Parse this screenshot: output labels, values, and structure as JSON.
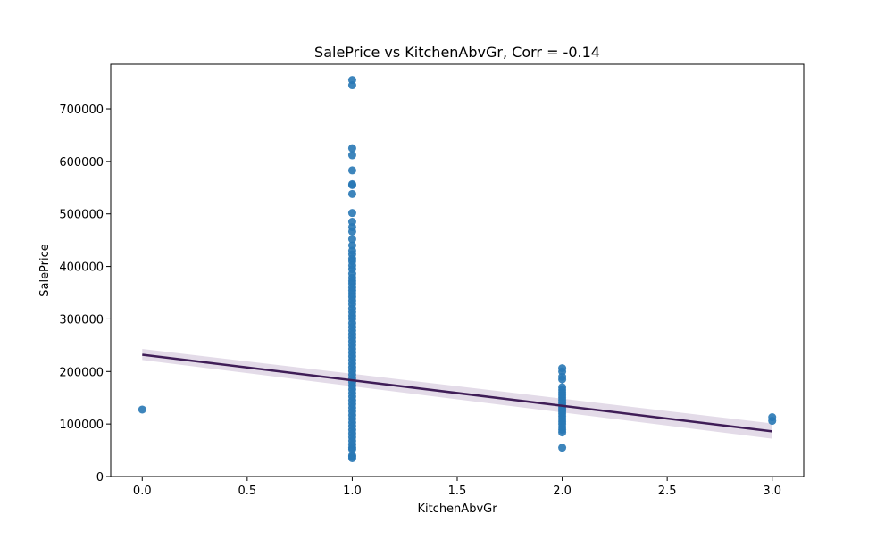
{
  "chart_data": {
    "type": "scatter",
    "title": "SalePrice vs KitchenAbvGr, Corr = -0.14",
    "xlabel": "KitchenAbvGr",
    "ylabel": "SalePrice",
    "xlim": [
      -0.15,
      3.15
    ],
    "ylim": [
      0,
      785000
    ],
    "x_ticks": [
      0.0,
      0.5,
      1.0,
      1.5,
      2.0,
      2.5,
      3.0
    ],
    "x_tick_labels": [
      "0.0",
      "0.5",
      "1.0",
      "1.5",
      "2.0",
      "2.5",
      "3.0"
    ],
    "y_ticks": [
      0,
      100000,
      200000,
      300000,
      400000,
      500000,
      600000,
      700000
    ],
    "y_tick_labels": [
      "0",
      "100000",
      "200000",
      "300000",
      "400000",
      "500000",
      "600000",
      "700000"
    ],
    "grid": false,
    "legend": "none",
    "point_color": "#2878b5",
    "regression_color": "#3f1d57",
    "ci_color": "#d9cfe0",
    "points": [
      {
        "x": 0,
        "y": 127500
      },
      {
        "x": 1,
        "y": 755000
      },
      {
        "x": 1,
        "y": 745000
      },
      {
        "x": 1,
        "y": 625000
      },
      {
        "x": 1,
        "y": 611657
      },
      {
        "x": 1,
        "y": 582933
      },
      {
        "x": 1,
        "y": 556581
      },
      {
        "x": 1,
        "y": 555000
      },
      {
        "x": 1,
        "y": 538000
      },
      {
        "x": 1,
        "y": 501837
      },
      {
        "x": 1,
        "y": 485000
      },
      {
        "x": 1,
        "y": 475000
      },
      {
        "x": 1,
        "y": 466500
      },
      {
        "x": 1,
        "y": 451950
      },
      {
        "x": 1,
        "y": 440000
      },
      {
        "x": 1,
        "y": 430000
      },
      {
        "x": 1,
        "y": 423000
      },
      {
        "x": 1,
        "y": 415000
      },
      {
        "x": 1,
        "y": 410000
      },
      {
        "x": 1,
        "y": 402000
      },
      {
        "x": 1,
        "y": 395000
      },
      {
        "x": 1,
        "y": 386250
      },
      {
        "x": 1,
        "y": 378500
      },
      {
        "x": 1,
        "y": 372500
      },
      {
        "x": 1,
        "y": 367294
      },
      {
        "x": 1,
        "y": 360000
      },
      {
        "x": 1,
        "y": 354000
      },
      {
        "x": 1,
        "y": 348000
      },
      {
        "x": 1,
        "y": 342000
      },
      {
        "x": 1,
        "y": 335000
      },
      {
        "x": 1,
        "y": 328000
      },
      {
        "x": 1,
        "y": 320000
      },
      {
        "x": 1,
        "y": 313000
      },
      {
        "x": 1,
        "y": 306000
      },
      {
        "x": 1,
        "y": 299800
      },
      {
        "x": 1,
        "y": 292000
      },
      {
        "x": 1,
        "y": 285000
      },
      {
        "x": 1,
        "y": 278000
      },
      {
        "x": 1,
        "y": 271000
      },
      {
        "x": 1,
        "y": 264000
      },
      {
        "x": 1,
        "y": 257000
      },
      {
        "x": 1,
        "y": 250000
      },
      {
        "x": 1,
        "y": 243000
      },
      {
        "x": 1,
        "y": 236000
      },
      {
        "x": 1,
        "y": 229000
      },
      {
        "x": 1,
        "y": 222000
      },
      {
        "x": 1,
        "y": 215000
      },
      {
        "x": 1,
        "y": 208000
      },
      {
        "x": 1,
        "y": 201000
      },
      {
        "x": 1,
        "y": 194000
      },
      {
        "x": 1,
        "y": 187000
      },
      {
        "x": 1,
        "y": 180000
      },
      {
        "x": 1,
        "y": 173000
      },
      {
        "x": 1,
        "y": 166000
      },
      {
        "x": 1,
        "y": 159000
      },
      {
        "x": 1,
        "y": 152000
      },
      {
        "x": 1,
        "y": 145000
      },
      {
        "x": 1,
        "y": 138000
      },
      {
        "x": 1,
        "y": 131000
      },
      {
        "x": 1,
        "y": 124000
      },
      {
        "x": 1,
        "y": 117000
      },
      {
        "x": 1,
        "y": 110000
      },
      {
        "x": 1,
        "y": 103000
      },
      {
        "x": 1,
        "y": 96000
      },
      {
        "x": 1,
        "y": 89000
      },
      {
        "x": 1,
        "y": 82000
      },
      {
        "x": 1,
        "y": 75000
      },
      {
        "x": 1,
        "y": 68000
      },
      {
        "x": 1,
        "y": 61000
      },
      {
        "x": 1,
        "y": 55000
      },
      {
        "x": 1,
        "y": 52000
      },
      {
        "x": 1,
        "y": 40000
      },
      {
        "x": 1,
        "y": 37900
      },
      {
        "x": 1,
        "y": 34900
      },
      {
        "x": 2,
        "y": 206300
      },
      {
        "x": 2,
        "y": 200000
      },
      {
        "x": 2,
        "y": 190000
      },
      {
        "x": 2,
        "y": 185000
      },
      {
        "x": 2,
        "y": 170000
      },
      {
        "x": 2,
        "y": 165000
      },
      {
        "x": 2,
        "y": 160000
      },
      {
        "x": 2,
        "y": 155000
      },
      {
        "x": 2,
        "y": 150000
      },
      {
        "x": 2,
        "y": 145000
      },
      {
        "x": 2,
        "y": 140000
      },
      {
        "x": 2,
        "y": 136000
      },
      {
        "x": 2,
        "y": 132000
      },
      {
        "x": 2,
        "y": 128000
      },
      {
        "x": 2,
        "y": 124000
      },
      {
        "x": 2,
        "y": 120000
      },
      {
        "x": 2,
        "y": 115000
      },
      {
        "x": 2,
        "y": 110000
      },
      {
        "x": 2,
        "y": 105000
      },
      {
        "x": 2,
        "y": 100000
      },
      {
        "x": 2,
        "y": 94000
      },
      {
        "x": 2,
        "y": 89000
      },
      {
        "x": 2,
        "y": 84000
      },
      {
        "x": 2,
        "y": 55000
      },
      {
        "x": 3,
        "y": 113000
      },
      {
        "x": 3,
        "y": 106000
      }
    ],
    "regression": {
      "x": [
        0,
        3
      ],
      "y": [
        232000,
        86000
      ],
      "ci_lower": [
        222000,
        72000
      ],
      "ci_upper": [
        243000,
        101000
      ]
    }
  }
}
